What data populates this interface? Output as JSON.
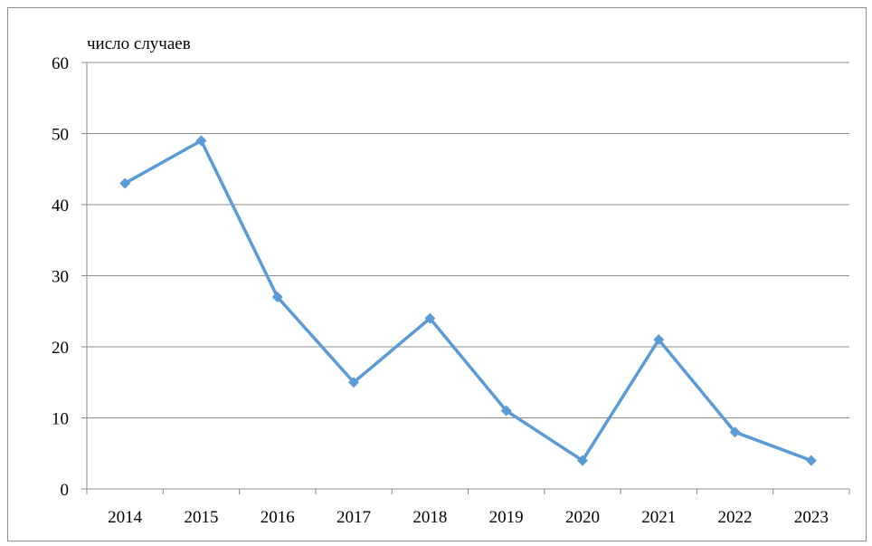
{
  "chart_data": {
    "type": "line",
    "title": "",
    "xlabel": "",
    "ylabel": "число случаев",
    "categories": [
      "2014",
      "2015",
      "2016",
      "2017",
      "2018",
      "2019",
      "2020",
      "2021",
      "2022",
      "2023"
    ],
    "series": [
      {
        "values": [
          43,
          49,
          27,
          15,
          24,
          11,
          4,
          21,
          8,
          4
        ],
        "color": "#5b9bd5",
        "marker": "diamond"
      }
    ],
    "ylim": [
      0,
      60
    ],
    "yticks": [
      0,
      10,
      20,
      30,
      40,
      50,
      60
    ],
    "grid": true,
    "legend": "none"
  }
}
